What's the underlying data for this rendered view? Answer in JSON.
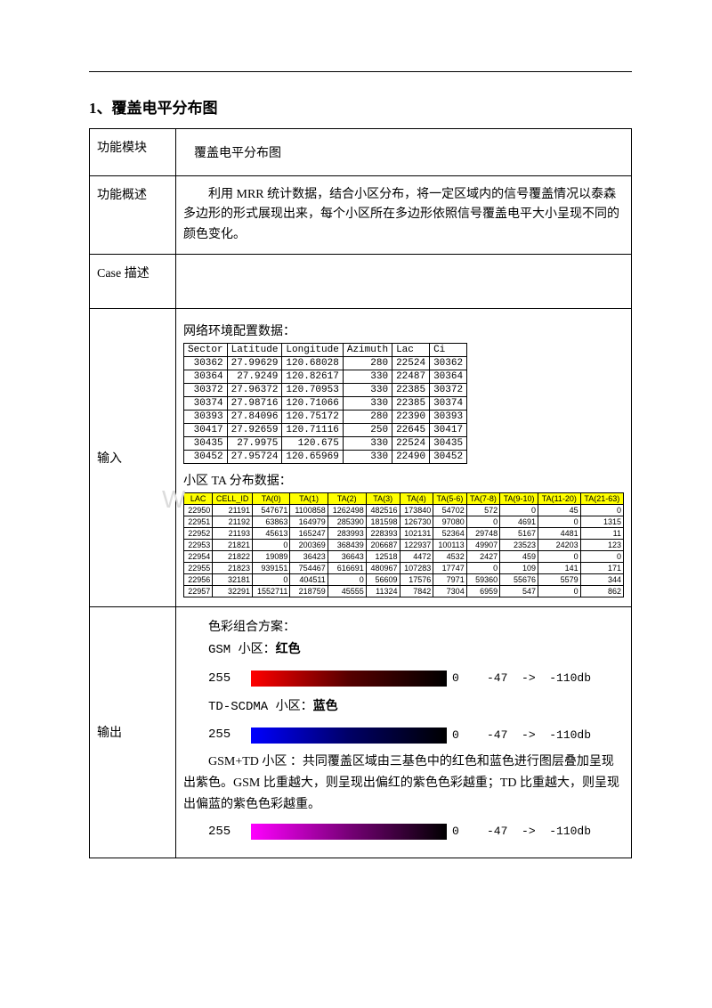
{
  "title": "1、覆盖电平分布图",
  "rows": {
    "module": {
      "label": "功能模块",
      "value": "覆盖电平分布图"
    },
    "desc": {
      "label": "功能概述",
      "value": "利用 MRR 统计数据，结合小区分布，将一定区域内的信号覆盖情况以泰森多边形的形式展现出来，每个小区所在多边形依照信号覆盖电平大小呈现不同的颜色变化。"
    },
    "case": {
      "label": "Case 描述",
      "value": ""
    },
    "input": {
      "label": "输入"
    },
    "output": {
      "label": "输出"
    }
  },
  "input": {
    "section1_label": "网络环境配置数据：",
    "section2_label": "小区 TA 分布数据：",
    "table1": {
      "columns": [
        "Sector",
        "Latitude",
        "Longitude",
        "Azimuth",
        "Lac",
        "Ci"
      ],
      "rows": [
        [
          "30362",
          "27.99629",
          "120.68028",
          "280",
          "22524",
          "30362"
        ],
        [
          "30364",
          "27.9249",
          "120.82617",
          "330",
          "22487",
          "30364"
        ],
        [
          "30372",
          "27.96372",
          "120.70953",
          "330",
          "22385",
          "30372"
        ],
        [
          "30374",
          "27.98716",
          "120.71066",
          "330",
          "22385",
          "30374"
        ],
        [
          "30393",
          "27.84096",
          "120.75172",
          "280",
          "22390",
          "30393"
        ],
        [
          "30417",
          "27.92659",
          "120.71116",
          "250",
          "22645",
          "30417"
        ],
        [
          "30435",
          "27.9975",
          "120.675",
          "330",
          "22524",
          "30435"
        ],
        [
          "30452",
          "27.95724",
          "120.65969",
          "330",
          "22490",
          "30452"
        ]
      ]
    },
    "table2": {
      "columns": [
        "LAC",
        "CELL_ID",
        "TA(0)",
        "TA(1)",
        "TA(2)",
        "TA(3)",
        "TA(4)",
        "TA(5-6)",
        "TA(7-8)",
        "TA(9-10)",
        "TA(11-20)",
        "TA(21-63)"
      ],
      "rows": [
        [
          "22950",
          "21191",
          "547671",
          "1100858",
          "1262498",
          "482516",
          "173840",
          "54702",
          "572",
          "0",
          "45",
          "0"
        ],
        [
          "22951",
          "21192",
          "63863",
          "164979",
          "285390",
          "181598",
          "126730",
          "97080",
          "0",
          "4691",
          "0",
          "1315"
        ],
        [
          "22952",
          "21193",
          "45613",
          "165247",
          "283993",
          "228393",
          "102131",
          "52364",
          "29748",
          "5167",
          "4481",
          "11"
        ],
        [
          "22953",
          "21821",
          "0",
          "200369",
          "368439",
          "206687",
          "122937",
          "100113",
          "49907",
          "23523",
          "24203",
          "123"
        ],
        [
          "22954",
          "21822",
          "19089",
          "36423",
          "36643",
          "12518",
          "4472",
          "4532",
          "2427",
          "459",
          "0",
          "0"
        ],
        [
          "22955",
          "21823",
          "939151",
          "754467",
          "616691",
          "480967",
          "107283",
          "17747",
          "0",
          "109",
          "141",
          "171"
        ],
        [
          "22956",
          "32181",
          "0",
          "404511",
          "0",
          "56609",
          "17576",
          "7971",
          "59360",
          "55676",
          "5579",
          "344"
        ],
        [
          "22957",
          "32291",
          "1552711",
          "218759",
          "45555",
          "11324",
          "7842",
          "7304",
          "6959",
          "547",
          "0",
          "862"
        ]
      ],
      "header_bg": "#ffff00"
    }
  },
  "output": {
    "scheme_label": "色彩组合方案：",
    "gsm_label_prefix": "GSM 小区：",
    "gsm_label_color": "红色",
    "td_label_prefix": "TD-SCDMA 小区：",
    "td_label_color": "蓝色",
    "combo_label": "GSM+TD 小区   ：共同覆盖区域由三基色中的红色和蓝色进行图层叠加呈现出紫色。GSM 比重越大，则呈现出偏红的紫色色彩越重；TD 比重越大，则呈现出偏蓝的紫色色彩越重。",
    "scale_left": "255",
    "scale_right": "0    -47  ->  -110db",
    "gradients": {
      "red": {
        "from": "#ff0000",
        "to": "#000000"
      },
      "blue": {
        "from": "#0000ff",
        "to": "#000000"
      },
      "mag": {
        "from": "#ff00ff",
        "to": "#000000"
      }
    }
  },
  "watermark": {
    "left": "W",
    "right": ""
  }
}
